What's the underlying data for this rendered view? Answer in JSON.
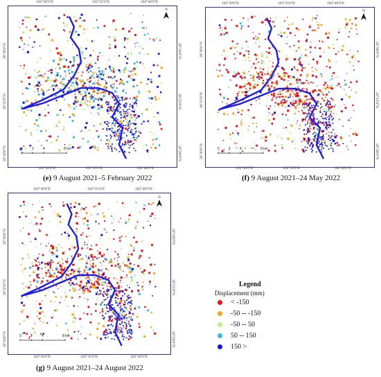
{
  "panels": [
    {
      "id": "e",
      "caption_letter": "(e)",
      "caption_text": " 9 August 2021–5 February 2022",
      "scheme": "mixed"
    },
    {
      "id": "f",
      "caption_letter": "(f)",
      "caption_text": " 9 August 2021–24 May 2022",
      "scheme": "red"
    },
    {
      "id": "g",
      "caption_letter": "(g)",
      "caption_text": " 9 August 2021–24 August 2022",
      "scheme": "red-mixed"
    }
  ],
  "ticks": {
    "top": [
      "102°30'0\"E",
      "102°35'0\"E",
      "102°40'0\"E"
    ],
    "bottom": [
      "102°30'0\"E",
      "102°35'0\"E",
      "102°40'0\"E"
    ],
    "left": [
      "26°30'0\"N",
      "26°25'0\"N",
      "26°20'0\"N"
    ],
    "right": [
      "26°30'0\"N",
      "26°25'0\"N",
      "26°20'0\"N"
    ]
  },
  "north_label": "N",
  "scale": {
    "labels": [
      "0",
      "2",
      "4",
      "8 km"
    ]
  },
  "legend": {
    "title": "Legend",
    "subtitle": "Displacement (mm)",
    "items": [
      {
        "label": "< -150",
        "color": "#e8141a"
      },
      {
        "label": "-50 -- -150",
        "color": "#f5a615"
      },
      {
        "label": "-50 -- 50",
        "color": "#b8f08a"
      },
      {
        "label": "50 -- 150",
        "color": "#3cb8e6"
      },
      {
        "label": "150 >",
        "color": "#1414dc"
      }
    ]
  },
  "colors": {
    "frame": "#2b2f9a",
    "river": "#1e1ee0"
  }
}
